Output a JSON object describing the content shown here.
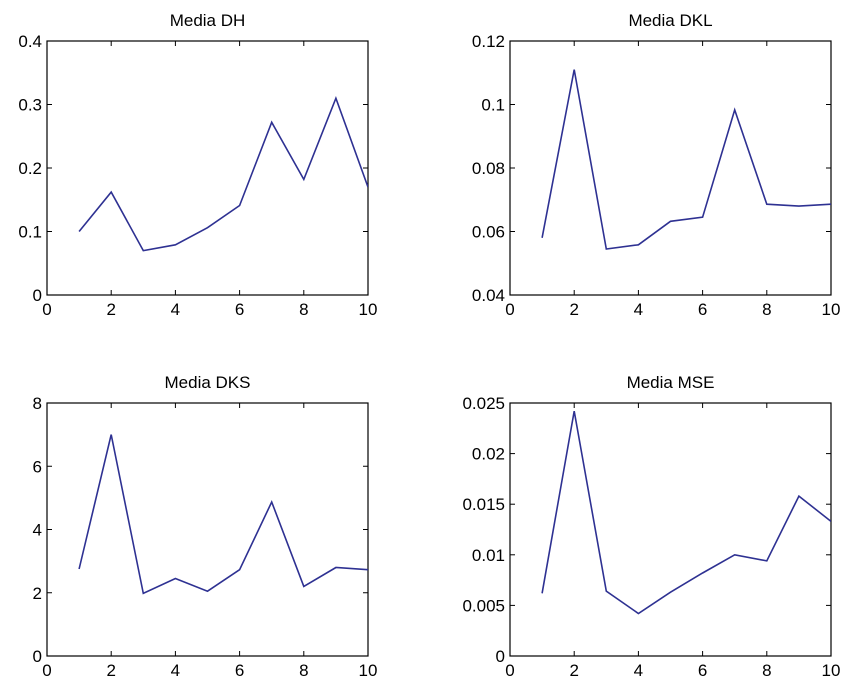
{
  "colors": {
    "line": "#2e3192",
    "axes": "#000000",
    "background": "#ffffff"
  },
  "chart_data": [
    {
      "type": "line",
      "title": "Media DH",
      "xlabel": "",
      "ylabel": "",
      "xlim": [
        0,
        10
      ],
      "ylim": [
        0,
        0.4
      ],
      "xticks": [
        0,
        2,
        4,
        6,
        8,
        10
      ],
      "xtick_labels": [
        "0",
        "2",
        "4",
        "6",
        "8",
        "10"
      ],
      "yticks": [
        0,
        0.1,
        0.2,
        0.3,
        0.4
      ],
      "ytick_labels": [
        "0",
        "0.1",
        "0.2",
        "0.3",
        "0.4"
      ],
      "grid": false,
      "series": [
        {
          "x": [
            1,
            2,
            3,
            4,
            5,
            6,
            7,
            8,
            9,
            10
          ],
          "values": [
            0.1,
            0.162,
            0.07,
            0.079,
            0.106,
            0.141,
            0.272,
            0.182,
            0.31,
            0.17
          ]
        }
      ]
    },
    {
      "type": "line",
      "title": "Media DKL",
      "xlabel": "",
      "ylabel": "",
      "xlim": [
        0,
        10
      ],
      "ylim": [
        0.04,
        0.12
      ],
      "xticks": [
        0,
        2,
        4,
        6,
        8,
        10
      ],
      "xtick_labels": [
        "0",
        "2",
        "4",
        "6",
        "8",
        "10"
      ],
      "yticks": [
        0.04,
        0.06,
        0.08,
        0.1,
        0.12
      ],
      "ytick_labels": [
        "0.04",
        "0.06",
        "0.08",
        "0.1",
        "0.12"
      ],
      "grid": false,
      "series": [
        {
          "x": [
            1,
            2,
            3,
            4,
            5,
            6,
            7,
            8,
            9,
            10
          ],
          "values": [
            0.058,
            0.111,
            0.0545,
            0.0558,
            0.0632,
            0.0645,
            0.0983,
            0.0686,
            0.068,
            0.0686
          ]
        }
      ]
    },
    {
      "type": "line",
      "title": "Media DKS",
      "xlabel": "",
      "ylabel": "",
      "xlim": [
        0,
        10
      ],
      "ylim": [
        0,
        8
      ],
      "xticks": [
        0,
        2,
        4,
        6,
        8,
        10
      ],
      "xtick_labels": [
        "0",
        "2",
        "4",
        "6",
        "8",
        "10"
      ],
      "yticks": [
        0,
        2,
        4,
        6,
        8
      ],
      "ytick_labels": [
        "0",
        "2",
        "4",
        "6",
        "8"
      ],
      "grid": false,
      "series": [
        {
          "x": [
            1,
            2,
            3,
            4,
            5,
            6,
            7,
            8,
            9,
            10
          ],
          "values": [
            2.75,
            7.0,
            1.98,
            2.45,
            2.05,
            2.73,
            4.87,
            2.2,
            2.8,
            2.73
          ]
        }
      ]
    },
    {
      "type": "line",
      "title": "Media MSE",
      "xlabel": "",
      "ylabel": "",
      "xlim": [
        0,
        10
      ],
      "ylim": [
        0,
        0.025
      ],
      "xticks": [
        0,
        2,
        4,
        6,
        8,
        10
      ],
      "xtick_labels": [
        "0",
        "2",
        "4",
        "6",
        "8",
        "10"
      ],
      "yticks": [
        0,
        0.005,
        0.01,
        0.015,
        0.02,
        0.025
      ],
      "ytick_labels": [
        "0",
        "0.005",
        "0.01",
        "0.015",
        "0.02",
        "0.025"
      ],
      "grid": false,
      "series": [
        {
          "x": [
            1,
            2,
            3,
            4,
            5,
            6,
            7,
            8,
            9,
            10
          ],
          "values": [
            0.0062,
            0.0242,
            0.0064,
            0.0042,
            0.0063,
            0.0082,
            0.01,
            0.0094,
            0.0158,
            0.0133
          ]
        }
      ]
    }
  ]
}
